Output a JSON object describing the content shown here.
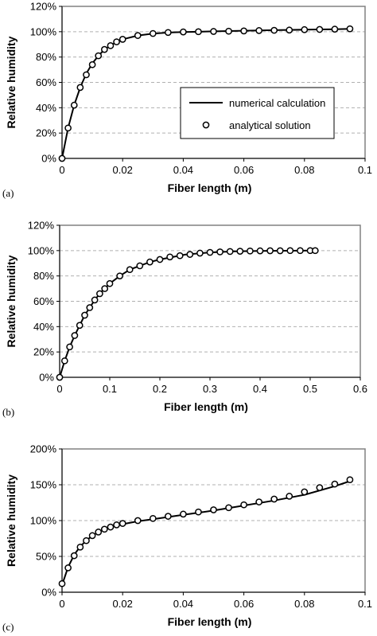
{
  "chart_data": [
    {
      "type": "line",
      "panel_label": "(a)",
      "xlabel": "Fiber length (m)",
      "ylabel": "Relative humidity",
      "xlim": [
        0,
        0.1
      ],
      "ylim": [
        0,
        120
      ],
      "xticks": [
        "0",
        "0.02",
        "0.04",
        "0.06",
        "0.08",
        "0.1"
      ],
      "yticks": [
        "0%",
        "20%",
        "40%",
        "60%",
        "80%",
        "100%",
        "120%"
      ],
      "grid": "horizontal dashed",
      "legend_position": "lower-right",
      "series": [
        {
          "name": "numerical calculation",
          "style": "solid line",
          "x": [
            0,
            0.002,
            0.004,
            0.006,
            0.008,
            0.01,
            0.012,
            0.014,
            0.016,
            0.018,
            0.02,
            0.025,
            0.03,
            0.035,
            0.04,
            0.05,
            0.06,
            0.07,
            0.08,
            0.09,
            0.095
          ],
          "y": [
            0,
            24,
            42,
            56,
            67,
            75,
            81,
            86,
            89,
            92,
            94,
            97,
            98.5,
            99.3,
            99.7,
            100.3,
            100.8,
            101.2,
            101.6,
            102.0,
            102.2
          ]
        },
        {
          "name": "analytical solution",
          "style": "open circles",
          "x": [
            0,
            0.002,
            0.004,
            0.006,
            0.008,
            0.01,
            0.012,
            0.014,
            0.016,
            0.018,
            0.02,
            0.025,
            0.03,
            0.035,
            0.04,
            0.045,
            0.05,
            0.055,
            0.06,
            0.065,
            0.07,
            0.075,
            0.08,
            0.085,
            0.09,
            0.095
          ],
          "y": [
            0,
            24,
            42,
            56,
            66,
            74,
            81,
            86,
            89,
            92,
            94,
            97,
            98.6,
            99.4,
            99.8,
            100,
            100.2,
            100.4,
            100.6,
            100.9,
            101.1,
            101.3,
            101.6,
            101.8,
            102.0,
            102.3
          ]
        }
      ]
    },
    {
      "type": "line",
      "panel_label": "(b)",
      "xlabel": "Fiber length (m)",
      "ylabel": "Relative humidity",
      "xlim": [
        0,
        0.6
      ],
      "ylim": [
        0,
        120
      ],
      "xticks": [
        "0",
        "0.1",
        "0.2",
        "0.3",
        "0.4",
        "0.5",
        "0.6"
      ],
      "yticks": [
        "0%",
        "20%",
        "40%",
        "60%",
        "80%",
        "100%",
        "120%"
      ],
      "grid": "horizontal dashed",
      "series": [
        {
          "style": "solid line",
          "x": [
            0,
            0.01,
            0.02,
            0.03,
            0.04,
            0.05,
            0.06,
            0.07,
            0.08,
            0.09,
            0.1,
            0.12,
            0.14,
            0.16,
            0.18,
            0.2,
            0.25,
            0.3,
            0.35,
            0.4,
            0.45,
            0.51
          ],
          "y": [
            0,
            13,
            24,
            33,
            41,
            49,
            55,
            61,
            66,
            70,
            74,
            80,
            85,
            88,
            91,
            93,
            96.8,
            98.6,
            99.4,
            99.8,
            99.9,
            100
          ]
        },
        {
          "style": "open circles",
          "x": [
            0,
            0.01,
            0.02,
            0.03,
            0.04,
            0.05,
            0.06,
            0.07,
            0.08,
            0.09,
            0.1,
            0.12,
            0.14,
            0.16,
            0.18,
            0.2,
            0.22,
            0.24,
            0.26,
            0.28,
            0.3,
            0.32,
            0.34,
            0.36,
            0.38,
            0.4,
            0.42,
            0.44,
            0.46,
            0.48,
            0.5,
            0.51
          ],
          "y": [
            0,
            13,
            24,
            33,
            41,
            49,
            55,
            61,
            66,
            70,
            74,
            80,
            85,
            88,
            91,
            93,
            95,
            96,
            97,
            98,
            98.6,
            99,
            99.3,
            99.5,
            99.7,
            99.8,
            99.9,
            99.9,
            100,
            100,
            100,
            100
          ]
        }
      ]
    },
    {
      "type": "line",
      "panel_label": "(c)",
      "xlabel": "Fiber length (m)",
      "ylabel": "Relative humidity",
      "xlim": [
        0,
        0.1
      ],
      "ylim": [
        0,
        200
      ],
      "xticks": [
        "0",
        "0.02",
        "0.04",
        "0.06",
        "0.08",
        "0.1"
      ],
      "yticks": [
        "0%",
        "50%",
        "100%",
        "150%",
        "200%"
      ],
      "grid": "horizontal dashed",
      "series": [
        {
          "style": "solid line",
          "x": [
            0,
            0.002,
            0.004,
            0.006,
            0.008,
            0.01,
            0.012,
            0.014,
            0.016,
            0.018,
            0.02,
            0.025,
            0.03,
            0.04,
            0.05,
            0.06,
            0.07,
            0.08,
            0.09,
            0.095
          ],
          "y": [
            10,
            35,
            52,
            64,
            72,
            79,
            84,
            88,
            91,
            93,
            95,
            99,
            102,
            108,
            114,
            121,
            128,
            136,
            148,
            155
          ]
        },
        {
          "style": "open circles",
          "x": [
            0,
            0.002,
            0.004,
            0.006,
            0.008,
            0.01,
            0.012,
            0.014,
            0.016,
            0.018,
            0.02,
            0.025,
            0.03,
            0.035,
            0.04,
            0.045,
            0.05,
            0.055,
            0.06,
            0.065,
            0.07,
            0.075,
            0.08,
            0.085,
            0.09,
            0.095
          ],
          "y": [
            12,
            34,
            51,
            63,
            72,
            79,
            84,
            88,
            91,
            94,
            96,
            100,
            103,
            106,
            109,
            112,
            115,
            118,
            122,
            126,
            130,
            134,
            140,
            146,
            151,
            157
          ]
        }
      ]
    }
  ]
}
